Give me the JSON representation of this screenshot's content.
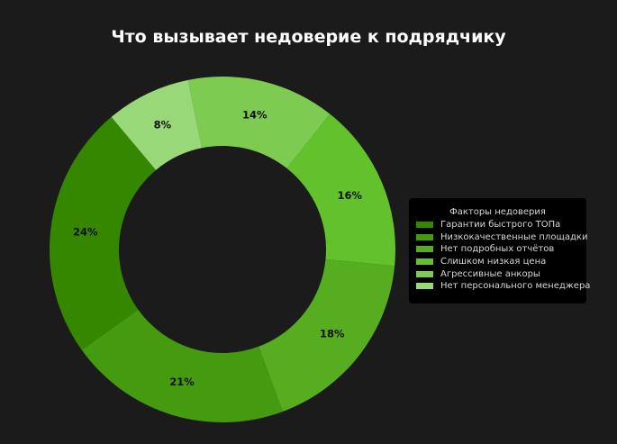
{
  "chart_data": {
    "type": "pie",
    "title": "Что вызывает недоверие к подрядчику",
    "categories": [
      "Гарантии быстрого ТОПа",
      "Низкокачественные площадки",
      "Нет подробных отчётов",
      "Слишком низкая цена",
      "Агрессивные анкоры",
      "Нет персонального менеджера"
    ],
    "values": [
      24,
      21,
      18,
      16,
      14,
      8
    ],
    "value_labels": [
      "24%",
      "21%",
      "18%",
      "16%",
      "14%",
      "8%"
    ],
    "colors": [
      "#358700",
      "#459b10",
      "#56ad20",
      "#63c12b",
      "#7dcb50",
      "#99d878"
    ],
    "donut": true,
    "legend": {
      "title": "Факторы недоверия",
      "placement": "right"
    }
  }
}
